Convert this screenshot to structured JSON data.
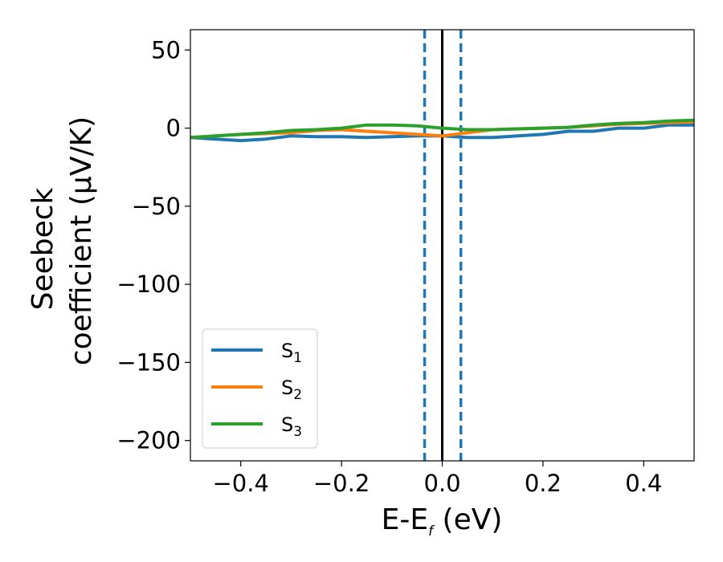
{
  "chart_data": {
    "type": "line",
    "title": "",
    "xlabel": "E-E",
    "xlabel_sub": "f",
    "xlabel_unit": " (eV)",
    "ylabel_line1": "Seebeck",
    "ylabel_line2": "coefficient  (μV/K)",
    "xlim": [
      -0.5,
      0.5
    ],
    "ylim": [
      -213,
      63
    ],
    "xticks": [
      -0.4,
      -0.2,
      0.0,
      0.2,
      0.4
    ],
    "xtick_labels": [
      "−0.4",
      "−0.2",
      "0.0",
      "0.2",
      "0.4"
    ],
    "yticks": [
      50,
      0,
      -50,
      -100,
      -150,
      -200
    ],
    "ytick_labels": [
      "50",
      "0",
      "−50",
      "−100",
      "−150",
      "−200"
    ],
    "grid": false,
    "legend_position": "lower-left",
    "vlines": [
      {
        "x": 0.0,
        "color": "#000000",
        "style": "solid"
      },
      {
        "x": -0.035,
        "color": "#1f77b4",
        "style": "dashed"
      },
      {
        "x": 0.037,
        "color": "#1f77b4",
        "style": "dashed"
      }
    ],
    "series": [
      {
        "name": "S",
        "sub": "1",
        "color": "#1f77b4",
        "x": [
          -0.5,
          -0.45,
          -0.4,
          -0.35,
          -0.3,
          -0.25,
          -0.2,
          -0.15,
          -0.1,
          -0.05,
          0.0,
          0.05,
          0.1,
          0.15,
          0.2,
          0.25,
          0.3,
          0.35,
          0.4,
          0.45,
          0.5
        ],
        "y": [
          -6,
          -7,
          -8,
          -7,
          -5,
          -5.5,
          -5.5,
          -6,
          -5.5,
          -5,
          -5,
          -6,
          -6,
          -5,
          -4,
          -2,
          -2,
          0,
          0,
          2,
          2
        ]
      },
      {
        "name": "S",
        "sub": "2",
        "color": "#ff7f0e",
        "x": [
          -0.5,
          -0.45,
          -0.4,
          -0.35,
          -0.3,
          -0.25,
          -0.2,
          -0.15,
          -0.1,
          -0.05,
          0.0,
          0.05,
          0.1,
          0.15,
          0.2,
          0.25,
          0.3,
          0.35,
          0.4,
          0.45,
          0.5
        ],
        "y": [
          -6,
          -5,
          -4,
          -3.5,
          -3,
          -1.5,
          -1,
          -2,
          -3,
          -4,
          -5,
          -3,
          -1,
          -0.5,
          0,
          0.5,
          1.5,
          2.5,
          3,
          3.5,
          4
        ]
      },
      {
        "name": "S",
        "sub": "3",
        "color": "#2ca02c",
        "x": [
          -0.5,
          -0.45,
          -0.4,
          -0.35,
          -0.3,
          -0.25,
          -0.2,
          -0.15,
          -0.1,
          -0.05,
          0.0,
          0.05,
          0.1,
          0.15,
          0.2,
          0.25,
          0.3,
          0.35,
          0.4,
          0.45,
          0.5
        ],
        "y": [
          -6,
          -5,
          -4,
          -3,
          -1.5,
          -1,
          0,
          2,
          2,
          1.5,
          0,
          -1,
          -1,
          -0.5,
          0,
          0.5,
          2,
          3,
          3.5,
          4.5,
          5
        ]
      }
    ]
  }
}
